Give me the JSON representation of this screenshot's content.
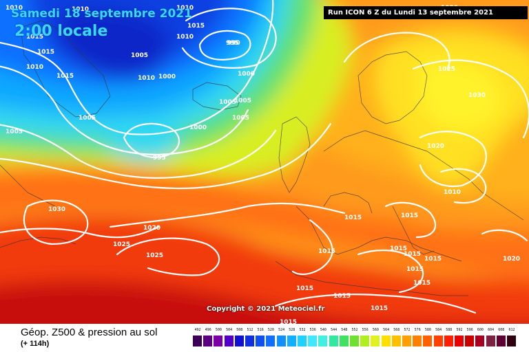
{
  "header": {
    "date": "Samedi 18 septembre 2021",
    "time": "2:00 locale",
    "run": "Run ICON 6 Z du Lundi 13 septembre 2021"
  },
  "copyright": "Copyright © 2021 Meteociel.fr",
  "legend": {
    "title": "Géop. Z500 & pression au sol",
    "subtitle": "(+ 114h)",
    "scale_values": [
      "492",
      "496",
      "500",
      "504",
      "508",
      "512",
      "516",
      "520",
      "524",
      "528",
      "532",
      "536",
      "540",
      "544",
      "548",
      "552",
      "556",
      "560",
      "564",
      "568",
      "572",
      "576",
      "580",
      "584",
      "588",
      "592",
      "596",
      "600",
      "604",
      "608",
      "612"
    ],
    "scale_colors": [
      "#3a0055",
      "#5a0080",
      "#7a00a8",
      "#5000c8",
      "#1010d0",
      "#1030e0",
      "#1050f0",
      "#1070ff",
      "#1090ff",
      "#10b0ff",
      "#20d0ff",
      "#40e8ff",
      "#40f0e0",
      "#30e8a0",
      "#40e060",
      "#70e030",
      "#b0ee20",
      "#e0f020",
      "#ffe000",
      "#ffc000",
      "#ffa000",
      "#ff8000",
      "#ff6000",
      "#ff4000",
      "#ff2000",
      "#e80000",
      "#c80000",
      "#a80020",
      "#802040",
      "#600030",
      "#300010"
    ]
  },
  "isobars": [
    {
      "label": "1010"
    },
    {
      "label": "1010"
    },
    {
      "label": "1015"
    },
    {
      "label": "995"
    },
    {
      "label": "990"
    },
    {
      "label": "1010"
    },
    {
      "label": "1015"
    },
    {
      "label": "1015"
    },
    {
      "label": "1010"
    },
    {
      "label": "1005"
    },
    {
      "label": "1015"
    },
    {
      "label": "1010"
    },
    {
      "label": "1000"
    },
    {
      "label": "1000"
    },
    {
      "label": "1005"
    },
    {
      "label": "1005"
    },
    {
      "label": "1005"
    },
    {
      "label": "1005"
    },
    {
      "label": "1000"
    },
    {
      "label": "995"
    },
    {
      "label": "1005"
    },
    {
      "label": "1030"
    },
    {
      "label": "1020"
    },
    {
      "label": "1025"
    },
    {
      "label": "1025"
    },
    {
      "label": "1025"
    },
    {
      "label": "1030"
    },
    {
      "label": "1020"
    },
    {
      "label": "1010"
    },
    {
      "label": "1015"
    },
    {
      "label": "1015"
    },
    {
      "label": "1015"
    },
    {
      "label": "1015"
    },
    {
      "label": "1015"
    },
    {
      "label": "1015"
    },
    {
      "label": "1015"
    },
    {
      "label": "1015"
    },
    {
      "label": "1015"
    },
    {
      "label": "1015"
    },
    {
      "label": "1020"
    },
    {
      "label": "1015"
    },
    {
      "label": "1015"
    },
    {
      "label": "1020"
    },
    {
      "label": "1010"
    }
  ]
}
